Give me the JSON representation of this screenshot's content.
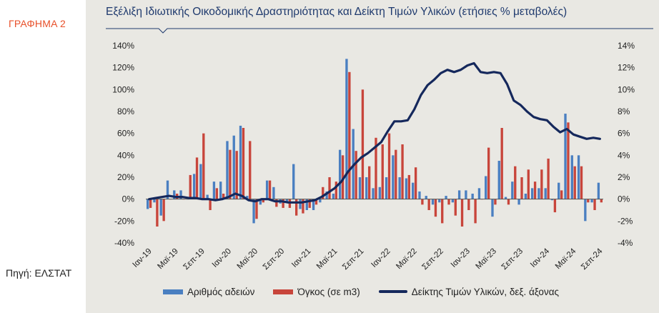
{
  "figure_label": "ΓΡΑΦΗΜΑ 2",
  "source_label": "Πηγή: ΕΛΣΤΑΤ",
  "colors": {
    "accent": "#e8502a",
    "title": "#1f3a6e",
    "permits": "#4a7fc1",
    "volume": "#c8453b",
    "index_line": "#15285c",
    "background": "#e9e8e3"
  },
  "chart_data": {
    "type": "bar",
    "title": "Εξέλιξη Ιδιωτικής Οικοδομικής Δραστηριότητας και Δείκτη Τιμών Υλικών (ετήσιες % μεταβολές)",
    "xlabel": "",
    "ylabel": "",
    "left_axis": {
      "min": -40,
      "max": 140,
      "step": 20,
      "tick_labels": [
        "-40%",
        "-20%",
        "0%",
        "20%",
        "40%",
        "60%",
        "80%",
        "100%",
        "120%",
        "140%"
      ]
    },
    "right_axis": {
      "min": -4,
      "max": 14,
      "step": 2,
      "tick_labels": [
        "-4%",
        "-2%",
        "0%",
        "2%",
        "4%",
        "6%",
        "8%",
        "10%",
        "12%",
        "14%"
      ]
    },
    "x_tick_labels": [
      "Ιαν-19",
      "Μαϊ-19",
      "Σεπ-19",
      "Ιαν-20",
      "Μαϊ-20",
      "Σεπ-20",
      "Ιαν-21",
      "Μαϊ-21",
      "Σεπ-21",
      "Ιαν-22",
      "Μαϊ-22",
      "Σεπ-22",
      "Ιαν-23",
      "Μαϊ-23",
      "Σεπ-23",
      "Ιαν-24",
      "Μαϊ-24",
      "Σεπ-24"
    ],
    "x_tick_step_months": 4,
    "months_count": 69,
    "legend_position": "bottom",
    "series": [
      {
        "name": "Αριθμός αδειών",
        "axis": "left",
        "kind": "bar",
        "values": [
          -9,
          -3,
          -15,
          17,
          8,
          8,
          0,
          23,
          32,
          4,
          16,
          16,
          53,
          58,
          67,
          3,
          -22,
          -5,
          17,
          11,
          -4,
          -3,
          32,
          -9,
          -10,
          -10,
          -3,
          7,
          5,
          45,
          128,
          64,
          20,
          20,
          10,
          11,
          20,
          40,
          20,
          19,
          15,
          7,
          3,
          -5,
          -3,
          3,
          -3,
          8,
          8,
          5,
          10,
          21,
          -16,
          35,
          2,
          16,
          -5,
          5,
          10,
          10,
          10,
          -1,
          15,
          78,
          40,
          40,
          -20,
          -3,
          15
        ],
        "note": "fragments Ιαν-19 to Σεπ-24"
      },
      {
        "name": "Όγκος (σε m3)",
        "axis": "left",
        "kind": "bar",
        "values": [
          -8,
          -25,
          -20,
          0,
          5,
          0,
          22,
          38,
          60,
          -10,
          10,
          5,
          45,
          44,
          65,
          53,
          -18,
          -3,
          17,
          -7,
          -8,
          -8,
          -15,
          -13,
          -8,
          -5,
          11,
          20,
          16,
          40,
          116,
          44,
          100,
          30,
          56,
          50,
          60,
          45,
          50,
          22,
          29,
          -5,
          -10,
          -16,
          -22,
          -5,
          -15,
          -25,
          -10,
          -22,
          0,
          47,
          -5,
          65,
          -5,
          30,
          20,
          27,
          16,
          27,
          37,
          -12,
          8,
          70,
          30,
          30,
          -3,
          -10,
          -3
        ],
        "note": "approximate"
      },
      {
        "name": "Δείκτης Τιμών Υλικών, δεξ. άξονας",
        "axis": "right",
        "kind": "line",
        "values": [
          0,
          0.1,
          0.2,
          0.3,
          0.2,
          0.2,
          0.1,
          0.1,
          0,
          0,
          -0.1,
          0,
          0.2,
          0.5,
          0.3,
          -0.1,
          -0.2,
          0,
          0,
          -0.2,
          -0.2,
          -0.3,
          -0.3,
          -0.3,
          -0.2,
          -0.1,
          0.2,
          0.6,
          1,
          1.6,
          2.5,
          3.2,
          3.8,
          4.2,
          4.7,
          5.2,
          6.2,
          7.1,
          7.1,
          7.2,
          8.2,
          9.5,
          10.4,
          10.9,
          11.5,
          11.8,
          11.6,
          11.8,
          12.2,
          12.4,
          11.6,
          11.5,
          11.6,
          11.5,
          10.5,
          9,
          8.6,
          8,
          7.5,
          7.3,
          7.2,
          6.6,
          6.1,
          6.4,
          5.9,
          5.7,
          5.5,
          5.6,
          5.5
        ],
        "note": "approximate"
      }
    ]
  }
}
